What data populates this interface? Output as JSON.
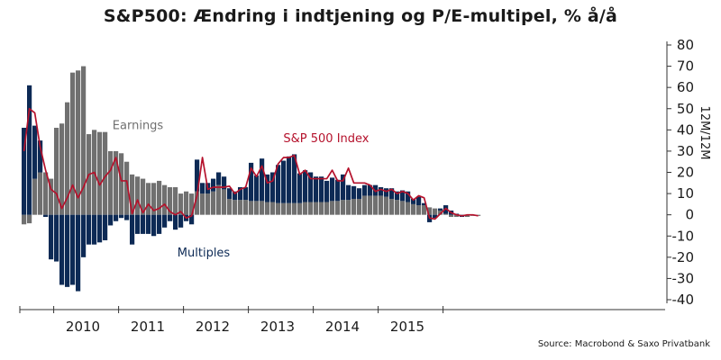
{
  "title": "S&P500: Ændring i indtjening og P/E-multipel, % å/å",
  "source": "Source: Macrobond & Saxo Privatbank",
  "colors": {
    "earnings": "#707070",
    "multiples": "#0d2a55",
    "index": "#b5122c",
    "axis": "#333333"
  },
  "chart_data": {
    "type": "bar",
    "stacked": true,
    "ylabel": "12M/12M",
    "ylim": [
      -40,
      80
    ],
    "yticks": [
      -40,
      -30,
      -20,
      -10,
      0,
      10,
      20,
      30,
      40,
      50,
      60,
      70,
      80
    ],
    "y_axis_side": "right",
    "grid": false,
    "x_labels": [
      "2010",
      "2011",
      "2012",
      "2013",
      "2014",
      "2015"
    ],
    "annotations": [
      {
        "text": "Earnings",
        "series": "earnings",
        "x": 16.8,
        "y": 42
      },
      {
        "text": "S&P 500 Index",
        "series": "index",
        "x": 48.4,
        "y": 36
      },
      {
        "text": "Multiples",
        "series": "multiples",
        "x": 28.8,
        "y": -18
      }
    ],
    "months_per_year": 12,
    "first_month": "2009-07",
    "earnings": [
      -4.5,
      -4,
      17,
      20,
      20,
      17,
      41,
      43,
      53,
      67,
      68,
      70,
      38,
      40,
      39,
      39,
      30,
      30,
      29,
      25,
      19,
      18,
      17,
      15,
      15,
      16,
      14,
      13,
      13,
      10,
      11,
      10,
      11,
      10,
      10,
      11,
      14,
      12,
      7.5,
      7,
      7,
      7,
      6.5,
      6.5,
      6.5,
      6,
      6,
      5.5,
      5.5,
      5.5,
      5.5,
      5.5,
      6,
      6,
      6,
      6,
      6,
      6.5,
      6.5,
      7,
      7,
      7.5,
      7.5,
      9,
      9,
      9,
      9,
      8.5,
      7.5,
      7,
      6.5,
      6,
      5,
      4.5,
      4.5,
      3.5,
      3,
      2,
      0.5,
      -1,
      -1,
      0,
      -1,
      -0.5,
      -0.5
    ],
    "multiples": [
      41,
      61,
      25,
      15,
      -1,
      -21,
      -22,
      -33,
      -34,
      -33,
      -36,
      -20,
      -14,
      -14,
      -13,
      -12,
      -5,
      -3,
      -1.5,
      -2.5,
      -14,
      -9,
      -9,
      -9,
      -10,
      -9,
      -6,
      -3,
      -7,
      -6,
      -3,
      -4.5,
      15,
      5,
      5,
      6,
      6,
      6,
      5,
      4,
      6,
      6,
      18,
      12,
      20,
      13,
      14,
      18,
      20,
      22,
      23,
      14,
      15,
      14,
      12,
      12,
      10,
      11,
      10,
      12,
      7,
      6,
      5,
      5,
      5,
      5,
      4,
      4,
      5,
      4,
      5,
      5,
      2.5,
      4,
      1,
      -3.5,
      -1.5,
      1,
      4,
      2,
      0.5,
      -1,
      0,
      0,
      0
    ],
    "index": [
      30,
      50,
      48,
      32,
      21,
      12,
      10,
      3,
      8,
      14,
      8,
      13,
      19,
      20,
      14,
      18,
      21,
      27,
      16,
      16,
      0.5,
      7,
      1,
      5,
      2,
      3,
      5,
      1.5,
      0,
      1.5,
      -1.5,
      -0.5,
      9,
      27,
      12,
      13,
      13,
      13,
      13.5,
      10,
      12,
      13,
      22,
      18,
      23,
      15,
      16,
      24,
      27,
      27,
      28,
      19,
      21,
      17,
      17,
      17,
      17,
      21,
      16,
      16,
      22,
      15,
      15,
      15,
      14,
      11,
      12,
      11,
      12,
      10,
      11,
      10,
      7,
      9,
      8,
      -1.5,
      -2,
      0.5,
      3,
      1,
      0,
      -0.5,
      0,
      0,
      -0.5
    ]
  }
}
